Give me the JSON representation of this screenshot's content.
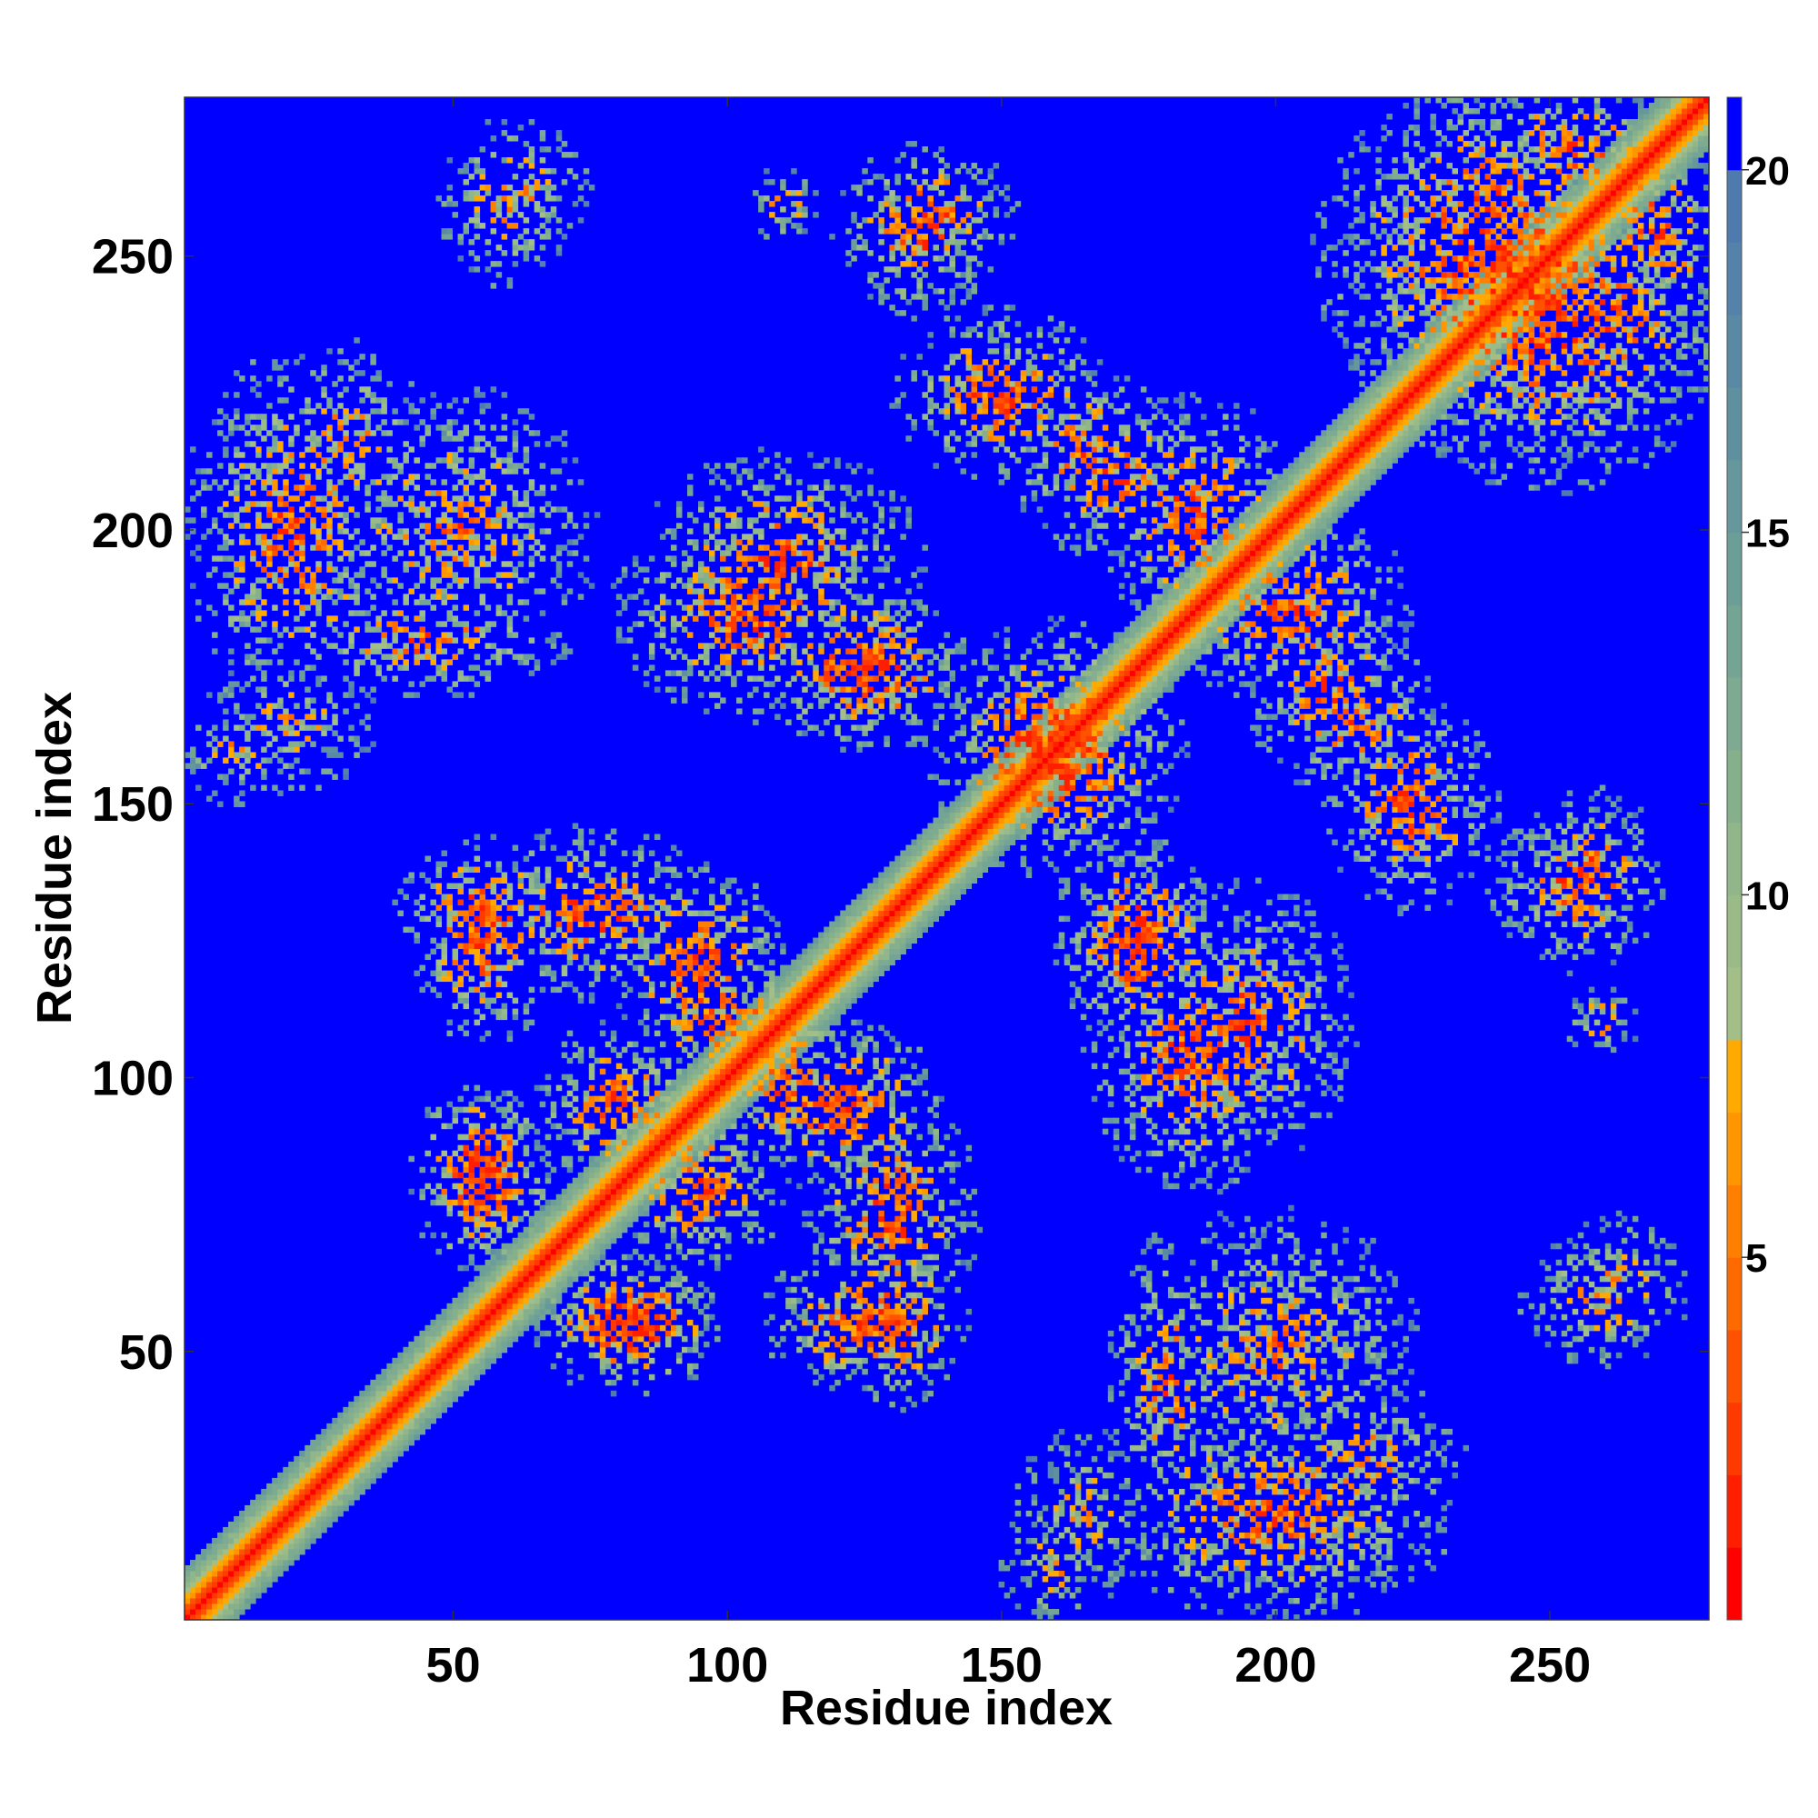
{
  "chart_data": {
    "type": "heatmap",
    "title": "",
    "xlabel": "Residue index",
    "ylabel": "Residue index",
    "n_residues": 279,
    "xlim": [
      1,
      279
    ],
    "ylim": [
      1,
      279
    ],
    "x_ticks": [
      50,
      100,
      150,
      200,
      250
    ],
    "y_ticks": [
      50,
      100,
      150,
      200,
      250
    ],
    "colorbar": {
      "range": [
        0,
        21
      ],
      "ticks": [
        5,
        10,
        15,
        20
      ],
      "levels": [
        {
          "min": 0,
          "max": 1,
          "color": "#ff0000"
        },
        {
          "min": 1,
          "max": 2,
          "color": "#ff1e00"
        },
        {
          "min": 2,
          "max": 3,
          "color": "#ff3a00"
        },
        {
          "min": 3,
          "max": 4,
          "color": "#ff5200"
        },
        {
          "min": 4,
          "max": 5,
          "color": "#ff6a00"
        },
        {
          "min": 5,
          "max": 6,
          "color": "#ff8000"
        },
        {
          "min": 6,
          "max": 7,
          "color": "#ff9600"
        },
        {
          "min": 7,
          "max": 8,
          "color": "#ffaa00"
        },
        {
          "min": 8,
          "max": 9,
          "color": "#a3be87"
        },
        {
          "min": 9,
          "max": 10,
          "color": "#9abb88"
        },
        {
          "min": 10,
          "max": 11,
          "color": "#90b68a"
        },
        {
          "min": 11,
          "max": 12,
          "color": "#86b08c"
        },
        {
          "min": 12,
          "max": 13,
          "color": "#7daa90"
        },
        {
          "min": 13,
          "max": 14,
          "color": "#74a494"
        },
        {
          "min": 14,
          "max": 15,
          "color": "#6c9e98"
        },
        {
          "min": 15,
          "max": 16,
          "color": "#65979c"
        },
        {
          "min": 16,
          "max": 17,
          "color": "#5f90a0"
        },
        {
          "min": 17,
          "max": 18,
          "color": "#5989a5"
        },
        {
          "min": 18,
          "max": 19,
          "color": "#5482aa"
        },
        {
          "min": 19,
          "max": 20,
          "color": "#4f7aae"
        },
        {
          "min": 20,
          "max": 21,
          "color": "#0000ff"
        }
      ]
    },
    "diagonal": {
      "band_width": 9
    },
    "contact_clusters": [
      {
        "x": 55,
        "y": 85,
        "rx": 10,
        "ry": 10,
        "strength": 0.85
      },
      {
        "x": 80,
        "y": 55,
        "rx": 12,
        "ry": 10,
        "strength": 0.9
      },
      {
        "x": 55,
        "y": 130,
        "rx": 12,
        "ry": 10,
        "strength": 0.8
      },
      {
        "x": 75,
        "y": 130,
        "rx": 18,
        "ry": 12,
        "strength": 0.75
      },
      {
        "x": 100,
        "y": 110,
        "rx": 15,
        "ry": 10,
        "strength": 0.7
      },
      {
        "x": 120,
        "y": 95,
        "rx": 15,
        "ry": 12,
        "strength": 0.8
      },
      {
        "x": 125,
        "y": 55,
        "rx": 15,
        "ry": 10,
        "strength": 0.75
      },
      {
        "x": 130,
        "y": 75,
        "rx": 10,
        "ry": 15,
        "strength": 0.7
      },
      {
        "x": 125,
        "y": 175,
        "rx": 15,
        "ry": 12,
        "strength": 0.85
      },
      {
        "x": 105,
        "y": 185,
        "rx": 20,
        "ry": 15,
        "strength": 0.75
      },
      {
        "x": 160,
        "y": 160,
        "rx": 18,
        "ry": 18,
        "strength": 0.9
      },
      {
        "x": 175,
        "y": 125,
        "rx": 12,
        "ry": 15,
        "strength": 0.8
      },
      {
        "x": 195,
        "y": 110,
        "rx": 15,
        "ry": 20,
        "strength": 0.7
      },
      {
        "x": 200,
        "y": 50,
        "rx": 20,
        "ry": 20,
        "strength": 0.6
      },
      {
        "x": 215,
        "y": 30,
        "rx": 15,
        "ry": 12,
        "strength": 0.6
      },
      {
        "x": 20,
        "y": 200,
        "rx": 15,
        "ry": 25,
        "strength": 0.7
      },
      {
        "x": 45,
        "y": 180,
        "rx": 20,
        "ry": 8,
        "strength": 0.65
      },
      {
        "x": 10,
        "y": 160,
        "rx": 8,
        "ry": 8,
        "strength": 0.5
      },
      {
        "x": 150,
        "y": 225,
        "rx": 15,
        "ry": 12,
        "strength": 0.75
      },
      {
        "x": 170,
        "y": 210,
        "rx": 12,
        "ry": 12,
        "strength": 0.7
      },
      {
        "x": 185,
        "y": 200,
        "rx": 12,
        "ry": 15,
        "strength": 0.7
      },
      {
        "x": 205,
        "y": 185,
        "rx": 15,
        "ry": 15,
        "strength": 0.7
      },
      {
        "x": 225,
        "y": 150,
        "rx": 12,
        "ry": 12,
        "strength": 0.75
      },
      {
        "x": 215,
        "y": 165,
        "rx": 12,
        "ry": 12,
        "strength": 0.65
      },
      {
        "x": 240,
        "y": 250,
        "rx": 25,
        "ry": 25,
        "strength": 0.8
      },
      {
        "x": 260,
        "y": 240,
        "rx": 18,
        "ry": 18,
        "strength": 0.7
      },
      {
        "x": 255,
        "y": 270,
        "rx": 15,
        "ry": 10,
        "strength": 0.7
      },
      {
        "x": 135,
        "y": 255,
        "rx": 12,
        "ry": 12,
        "strength": 0.7
      },
      {
        "x": 60,
        "y": 260,
        "rx": 10,
        "ry": 12,
        "strength": 0.55
      },
      {
        "x": 258,
        "y": 137,
        "rx": 10,
        "ry": 12,
        "strength": 0.7
      },
      {
        "x": 262,
        "y": 62,
        "rx": 10,
        "ry": 10,
        "strength": 0.55
      },
      {
        "x": 260,
        "y": 110,
        "rx": 5,
        "ry": 5,
        "strength": 0.6
      },
      {
        "x": 165,
        "y": 20,
        "rx": 10,
        "ry": 12,
        "strength": 0.5
      },
      {
        "x": 95,
        "y": 80,
        "rx": 12,
        "ry": 12,
        "strength": 0.75
      }
    ]
  }
}
